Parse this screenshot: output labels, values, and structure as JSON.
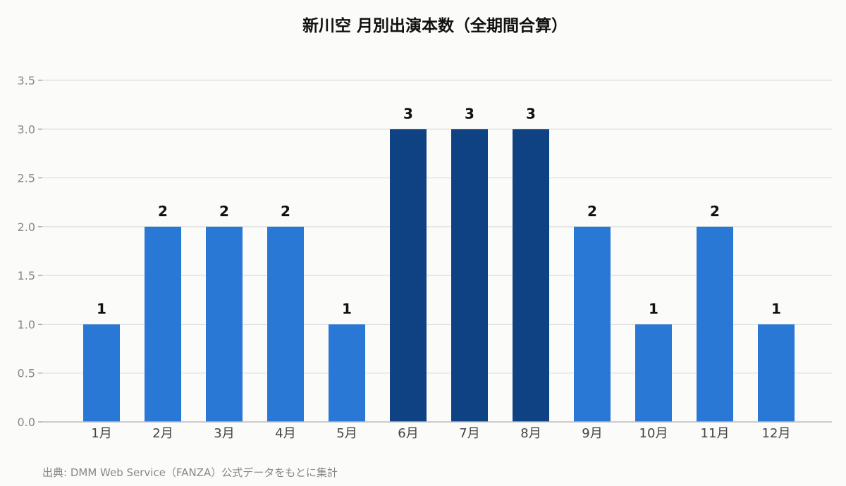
{
  "chart_data": {
    "type": "bar",
    "title": "新川空 月別出演本数（全期間合算）",
    "categories": [
      "1月",
      "2月",
      "3月",
      "4月",
      "5月",
      "6月",
      "7月",
      "8月",
      "9月",
      "10月",
      "11月",
      "12月"
    ],
    "values": [
      1,
      2,
      2,
      2,
      1,
      3,
      3,
      3,
      2,
      1,
      2,
      1
    ],
    "ylim": [
      0,
      3.5
    ],
    "yticks": [
      "0.0",
      "0.5",
      "1.0",
      "1.5",
      "2.0",
      "2.5",
      "3.0",
      "3.5"
    ],
    "xlabel": "",
    "ylabel": "",
    "grid": true,
    "colors": {
      "normal": "#2a78d6",
      "highlight": "#0f4283"
    },
    "highlight_rule": "max value bars highlighted"
  },
  "source_note": "出典: DMM Web Service（FANZA）公式データをもとに集計"
}
